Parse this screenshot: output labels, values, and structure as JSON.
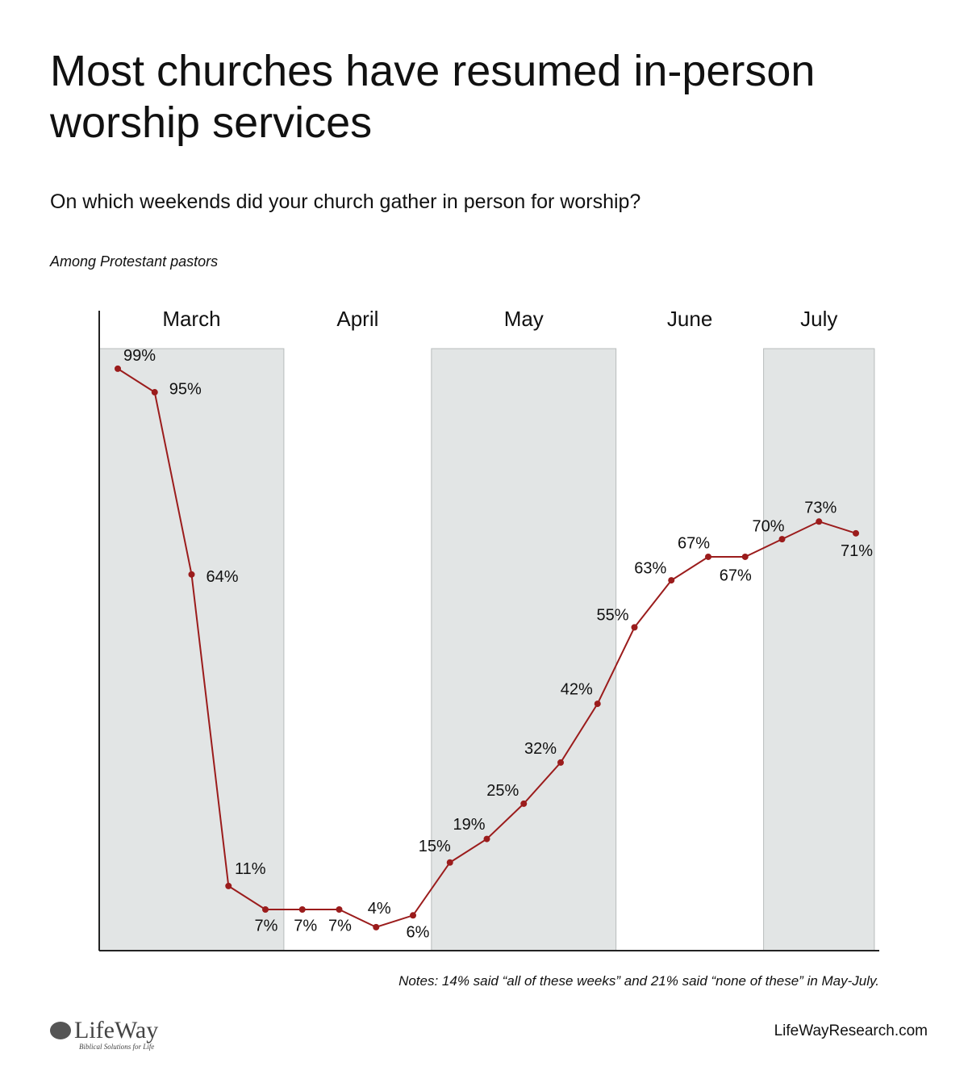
{
  "chart_data": {
    "type": "line",
    "title": "Most churches have resumed in-person worship services",
    "subtitle": "On which weekends did your church gather in person for worship?",
    "population": "Among Protestant pastors",
    "categories": [
      null,
      null,
      null,
      null,
      null,
      null,
      null,
      null,
      null,
      null,
      null,
      null,
      null,
      null,
      null,
      null,
      null,
      null,
      null,
      null,
      null
    ],
    "values": [
      99,
      95,
      64,
      11,
      7,
      7,
      7,
      4,
      6,
      15,
      19,
      25,
      32,
      42,
      55,
      63,
      67,
      67,
      70,
      73,
      71
    ],
    "value_labels": [
      "99%",
      "95%",
      "64%",
      "11%",
      "7%",
      "7%",
      "7%",
      "4%",
      "6%",
      "15%",
      "19%",
      "25%",
      "32%",
      "42%",
      "55%",
      "63%",
      "67%",
      "67%",
      "70%",
      "73%",
      "71%"
    ],
    "month_bands": [
      {
        "label": "March",
        "first": 0,
        "last": 4,
        "shaded": true
      },
      {
        "label": "April",
        "first": 5,
        "last": 8,
        "shaded": false
      },
      {
        "label": "May",
        "first": 9,
        "last": 13,
        "shaded": true
      },
      {
        "label": "June",
        "first": 14,
        "last": 17,
        "shaded": false
      },
      {
        "label": "July",
        "first": 18,
        "last": 20,
        "shaded": true
      }
    ],
    "color": "#9b1c1c",
    "band_color": "#e2e5e5",
    "ylim": [
      0,
      100
    ],
    "notes": "Notes: 14% said “all of these weeks” and 21% said “none of these” in May-July.",
    "logo": {
      "name": "LifeWay",
      "tagline": "Biblical Solutions for Life"
    },
    "source": "LifeWayResearch.com"
  }
}
